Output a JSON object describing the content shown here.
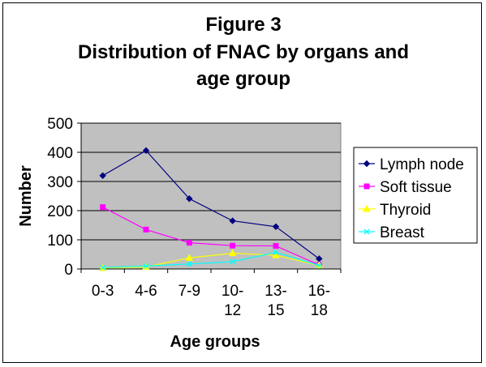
{
  "chart_data": {
    "type": "line",
    "title_lines": [
      "Figure 3",
      "Distribution of FNAC by organs and",
      "age group"
    ],
    "xlabel": "Age groups",
    "ylabel": "Number",
    "categories": [
      [
        "0-3"
      ],
      [
        "4-6"
      ],
      [
        "7-9"
      ],
      [
        "10-",
        "12"
      ],
      [
        "13-",
        "15"
      ],
      [
        "16-",
        "18"
      ]
    ],
    "ylim": [
      0,
      500
    ],
    "yticks": [
      0,
      100,
      200,
      300,
      400,
      500
    ],
    "ytick_labels": [
      "0",
      "100",
      "200",
      "300",
      "400",
      "500"
    ],
    "grid": true,
    "legend_position": "right",
    "plot_background": "#c0c0c0",
    "series": [
      {
        "name": "Lymph node",
        "color": "#000080",
        "marker": "diamond",
        "values": [
          320,
          406,
          241,
          165,
          145,
          35
        ]
      },
      {
        "name": "Soft tissue",
        "color": "#ff00ff",
        "marker": "square",
        "values": [
          212,
          135,
          90,
          80,
          79,
          14
        ]
      },
      {
        "name": "Thyroid",
        "color": "#ffff00",
        "marker": "triangle",
        "values": [
          3,
          7,
          38,
          54,
          47,
          12
        ]
      },
      {
        "name": "Breast",
        "color": "#00ffff",
        "marker": "x",
        "values": [
          5,
          10,
          17,
          25,
          57,
          12
        ]
      }
    ]
  }
}
